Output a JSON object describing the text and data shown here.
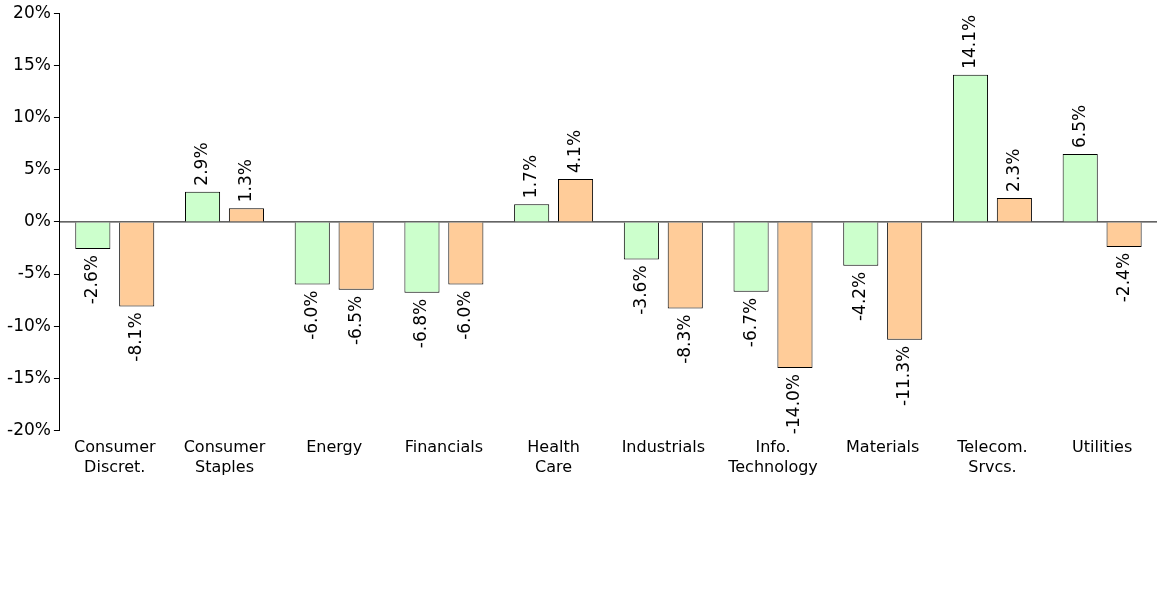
{
  "chart_data": {
    "type": "bar",
    "categories": [
      "Consumer Discret.",
      "Consumer Staples",
      "Energy",
      "Financials",
      "Health Care",
      "Industrials",
      "Info. Technology",
      "Materials",
      "Telecom. Srvcs.",
      "Utilities"
    ],
    "series": [
      {
        "color": "#ccffcc",
        "values": [
          -2.6,
          2.9,
          -6.0,
          -6.8,
          1.7,
          -3.6,
          -6.7,
          -4.2,
          14.1,
          6.5
        ],
        "value_labels": [
          "-2.6%",
          "2.9%",
          "-6.0%",
          "-6.8%",
          "1.7%",
          "-3.6%",
          "-6.7%",
          "-4.2%",
          "14.1%",
          "6.5%"
        ]
      },
      {
        "color": "#ffcc99",
        "values": [
          -8.1,
          1.3,
          -6.5,
          -6.0,
          4.1,
          -8.3,
          -14.0,
          -11.3,
          2.3,
          -2.4
        ],
        "value_labels": [
          "-8.1%",
          "1.3%",
          "-6.5%",
          "-6.0%",
          "4.1%",
          "-8.3%",
          "-14.0%",
          "-11.3%",
          "2.3%",
          "-2.4%"
        ]
      }
    ],
    "ylim": [
      -20,
      20
    ],
    "yticks": [
      {
        "value": -20,
        "label": "-20%"
      },
      {
        "value": -15,
        "label": "-15%"
      },
      {
        "value": -10,
        "label": "-10%"
      },
      {
        "value": -5,
        "label": "-5%"
      },
      {
        "value": 0,
        "label": "0%"
      },
      {
        "value": 5,
        "label": "5%"
      },
      {
        "value": 10,
        "label": "10%"
      },
      {
        "value": 15,
        "label": "15%"
      },
      {
        "value": 20,
        "label": "20%"
      }
    ],
    "ref_lines": [
      {
        "axis": "y",
        "value": 0,
        "color": "#000000"
      }
    ],
    "grid": false,
    "legend": false
  }
}
